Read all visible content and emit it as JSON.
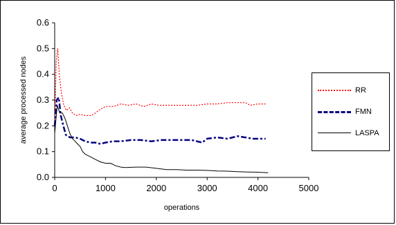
{
  "chart_data": {
    "type": "line",
    "title": "",
    "xlabel": "operations",
    "ylabel": "average processed nodes",
    "xlim": [
      0,
      5000
    ],
    "ylim": [
      0,
      0.6
    ],
    "xticks": [
      0,
      1000,
      2000,
      3000,
      4000,
      5000
    ],
    "yticks": [
      0.0,
      0.1,
      0.2,
      0.3,
      0.4,
      0.5,
      0.6
    ],
    "xtick_labels": [
      "0",
      "1000",
      "2000",
      "3000",
      "4000",
      "5000"
    ],
    "ytick_labels": [
      "0.0",
      "0.1",
      "0.2",
      "0.3",
      "0.4",
      "0.5",
      "0.6"
    ],
    "grid": false,
    "legend_position": "right",
    "series": [
      {
        "name": "RR",
        "color": "#ff0000",
        "style": "dotted",
        "points": [
          [
            0,
            0.2
          ],
          [
            30,
            0.45
          ],
          [
            60,
            0.5
          ],
          [
            90,
            0.4
          ],
          [
            130,
            0.33
          ],
          [
            180,
            0.28
          ],
          [
            230,
            0.26
          ],
          [
            290,
            0.27
          ],
          [
            350,
            0.25
          ],
          [
            420,
            0.24
          ],
          [
            500,
            0.245
          ],
          [
            580,
            0.24
          ],
          [
            650,
            0.24
          ],
          [
            720,
            0.24
          ],
          [
            800,
            0.25
          ],
          [
            900,
            0.265
          ],
          [
            1000,
            0.275
          ],
          [
            1150,
            0.275
          ],
          [
            1300,
            0.285
          ],
          [
            1450,
            0.28
          ],
          [
            1600,
            0.285
          ],
          [
            1750,
            0.275
          ],
          [
            1900,
            0.285
          ],
          [
            2050,
            0.28
          ],
          [
            2200,
            0.28
          ],
          [
            2400,
            0.28
          ],
          [
            2600,
            0.28
          ],
          [
            2800,
            0.28
          ],
          [
            3000,
            0.285
          ],
          [
            3200,
            0.285
          ],
          [
            3400,
            0.29
          ],
          [
            3600,
            0.29
          ],
          [
            3750,
            0.29
          ],
          [
            3850,
            0.28
          ],
          [
            4000,
            0.285
          ],
          [
            4150,
            0.285
          ]
        ]
      },
      {
        "name": "FMN",
        "color": "#000080",
        "style": "dash-dot",
        "points": [
          [
            0,
            0.2
          ],
          [
            40,
            0.3
          ],
          [
            80,
            0.31
          ],
          [
            120,
            0.24
          ],
          [
            170,
            0.2
          ],
          [
            220,
            0.165
          ],
          [
            300,
            0.155
          ],
          [
            400,
            0.155
          ],
          [
            500,
            0.15
          ],
          [
            600,
            0.14
          ],
          [
            700,
            0.135
          ],
          [
            800,
            0.135
          ],
          [
            900,
            0.13
          ],
          [
            1000,
            0.135
          ],
          [
            1150,
            0.14
          ],
          [
            1300,
            0.14
          ],
          [
            1500,
            0.145
          ],
          [
            1700,
            0.145
          ],
          [
            1900,
            0.14
          ],
          [
            2100,
            0.145
          ],
          [
            2300,
            0.145
          ],
          [
            2500,
            0.145
          ],
          [
            2700,
            0.145
          ],
          [
            2900,
            0.135
          ],
          [
            3000,
            0.15
          ],
          [
            3200,
            0.155
          ],
          [
            3400,
            0.15
          ],
          [
            3600,
            0.16
          ],
          [
            3750,
            0.155
          ],
          [
            3900,
            0.15
          ],
          [
            4000,
            0.15
          ],
          [
            4150,
            0.15
          ]
        ]
      },
      {
        "name": "LASPA",
        "color": "#000000",
        "style": "solid",
        "points": [
          [
            0,
            0.17
          ],
          [
            50,
            0.28
          ],
          [
            100,
            0.25
          ],
          [
            150,
            0.25
          ],
          [
            200,
            0.23
          ],
          [
            250,
            0.2
          ],
          [
            300,
            0.17
          ],
          [
            350,
            0.15
          ],
          [
            400,
            0.14
          ],
          [
            450,
            0.13
          ],
          [
            500,
            0.12
          ],
          [
            550,
            0.1
          ],
          [
            600,
            0.09
          ],
          [
            700,
            0.08
          ],
          [
            800,
            0.07
          ],
          [
            900,
            0.06
          ],
          [
            1000,
            0.055
          ],
          [
            1100,
            0.055
          ],
          [
            1200,
            0.045
          ],
          [
            1300,
            0.04
          ],
          [
            1400,
            0.038
          ],
          [
            1600,
            0.04
          ],
          [
            1800,
            0.04
          ],
          [
            2000,
            0.035
          ],
          [
            2200,
            0.03
          ],
          [
            2400,
            0.03
          ],
          [
            2600,
            0.028
          ],
          [
            2800,
            0.028
          ],
          [
            3000,
            0.027
          ],
          [
            3200,
            0.025
          ],
          [
            3400,
            0.024
          ],
          [
            3600,
            0.022
          ],
          [
            3800,
            0.021
          ],
          [
            4000,
            0.02
          ],
          [
            4200,
            0.018
          ]
        ]
      }
    ]
  }
}
